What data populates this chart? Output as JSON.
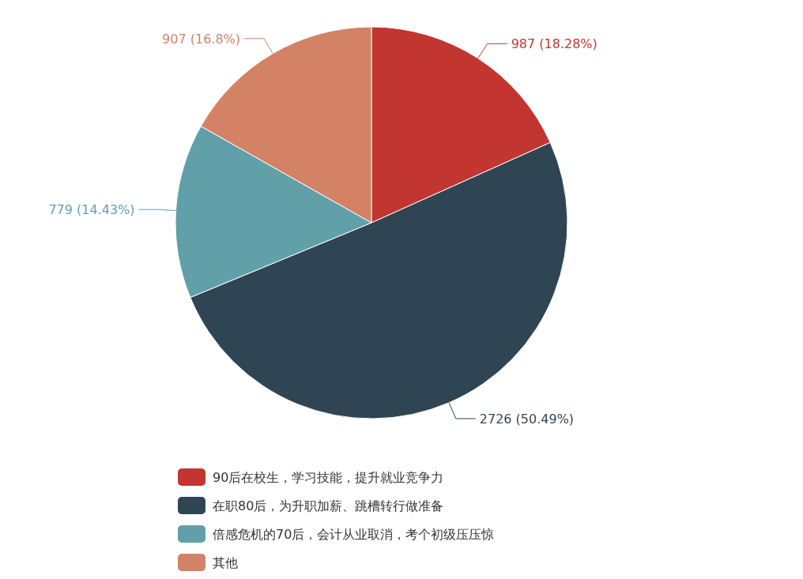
{
  "chart_data": {
    "type": "pie",
    "categories": [
      "90后在校生，学习技能，提升就业竞争力",
      "在职80后，为升职加薪、跳槽转行做准备",
      "倍感危机的70后，会计从业取消，考个初级压压惊",
      "其他"
    ],
    "values": [
      987,
      2726,
      779,
      907
    ],
    "colors": [
      "#c23531",
      "#2f4554",
      "#61a0a8",
      "#d48265"
    ],
    "value_labels": [
      "987 (18.28%)",
      "2726 (50.49%)",
      "779 (14.43%)",
      "907 (16.8%)"
    ],
    "legend": "bottom left"
  }
}
